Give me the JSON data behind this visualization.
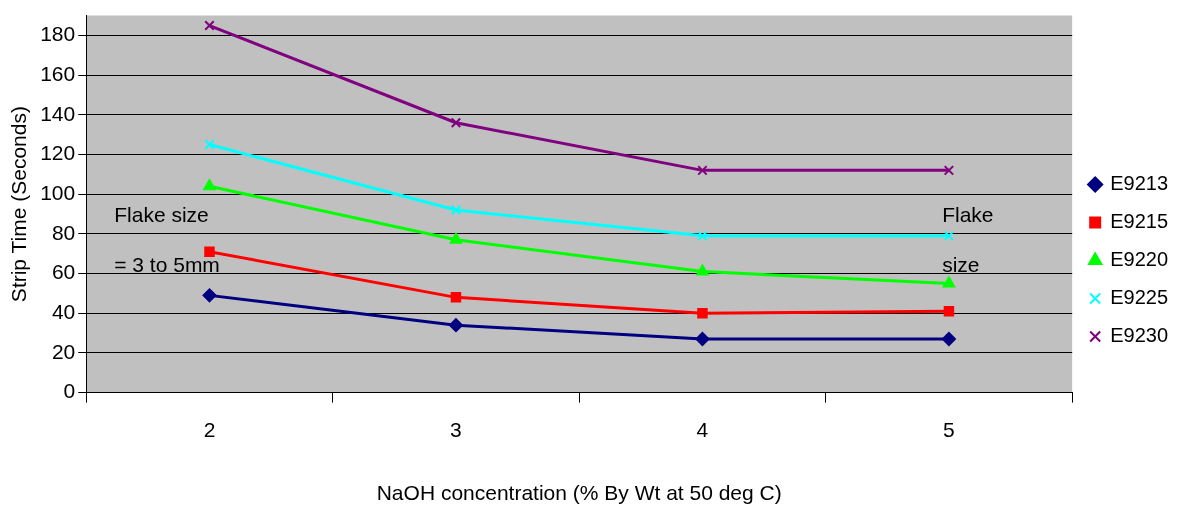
{
  "chart_data": {
    "type": "line",
    "xlabel": "NaOH concentration (% By Wt at 50 deg C)",
    "ylabel": "Strip Time (Seconds)",
    "categories": [
      "2",
      "3",
      "4",
      "5"
    ],
    "series": [
      {
        "name": "E9213",
        "color": "#000080",
        "marker": "diamond",
        "values": [
          49,
          34,
          27,
          27
        ]
      },
      {
        "name": "E9215",
        "color": "#ff0000",
        "marker": "square",
        "values": [
          71,
          48,
          40,
          41
        ]
      },
      {
        "name": "E9220",
        "color": "#00ff00",
        "marker": "triangle",
        "values": [
          104,
          77,
          61,
          55
        ]
      },
      {
        "name": "E9225",
        "color": "#00ffff",
        "marker": "cross",
        "values": [
          125,
          92,
          79,
          79
        ]
      },
      {
        "name": "E9230",
        "color": "#800080",
        "marker": "cross",
        "values": [
          185,
          136,
          112,
          112
        ]
      }
    ],
    "ylim": [
      0,
      190
    ],
    "yticks": [
      0,
      20,
      40,
      60,
      80,
      100,
      120,
      140,
      160,
      180
    ],
    "grid": "y",
    "legend": "right",
    "line_style": "solid",
    "annotations": [
      "Flake size = 3 to 5mm",
      "Flake size"
    ]
  }
}
